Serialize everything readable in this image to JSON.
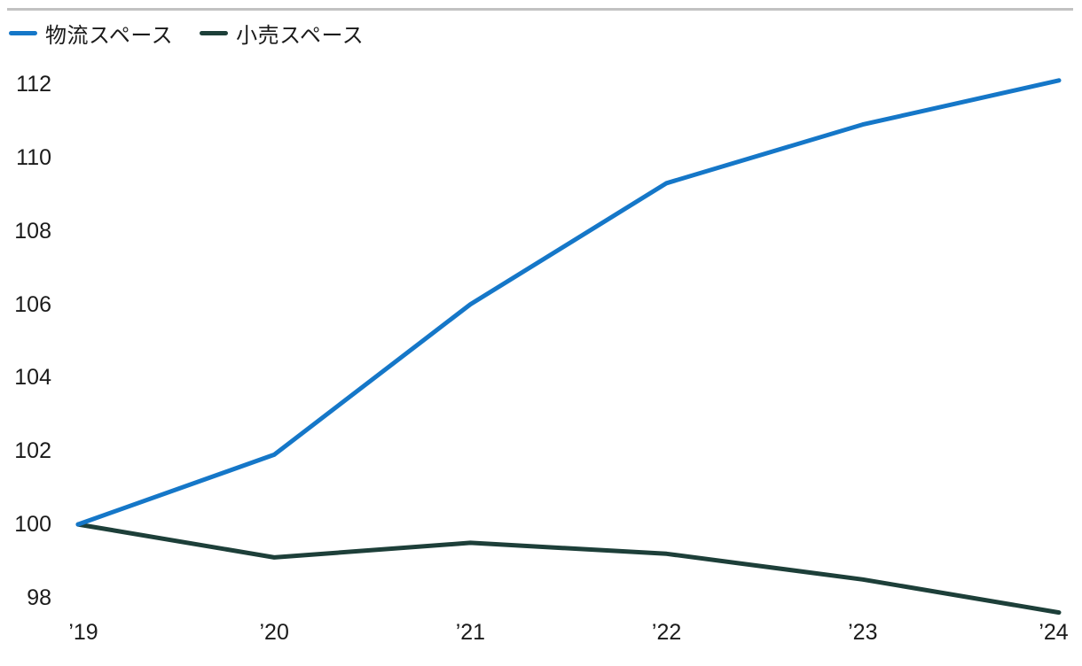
{
  "styles": {
    "background": "#ffffff",
    "top_rule_color": "#c2c2c2",
    "text_color": "#1b1b1b"
  },
  "chart_data": {
    "type": "line",
    "x_labels": [
      "’19",
      "’20",
      "’21",
      "’22",
      "’23",
      "’24"
    ],
    "y_ticks": [
      98,
      100,
      102,
      104,
      106,
      108,
      110,
      112
    ],
    "ylim": [
      97.4,
      112.6
    ],
    "index_base": 100,
    "grid": false,
    "legend_position": "top-left",
    "series": [
      {
        "name": "物流スペース",
        "color": "#1577c8",
        "values": [
          100,
          101.9,
          106.0,
          109.3,
          110.9,
          112.1
        ]
      },
      {
        "name": "小売スペース",
        "color": "#1d3f39",
        "values": [
          100,
          99.1,
          99.5,
          99.2,
          98.5,
          97.6
        ]
      }
    ]
  }
}
